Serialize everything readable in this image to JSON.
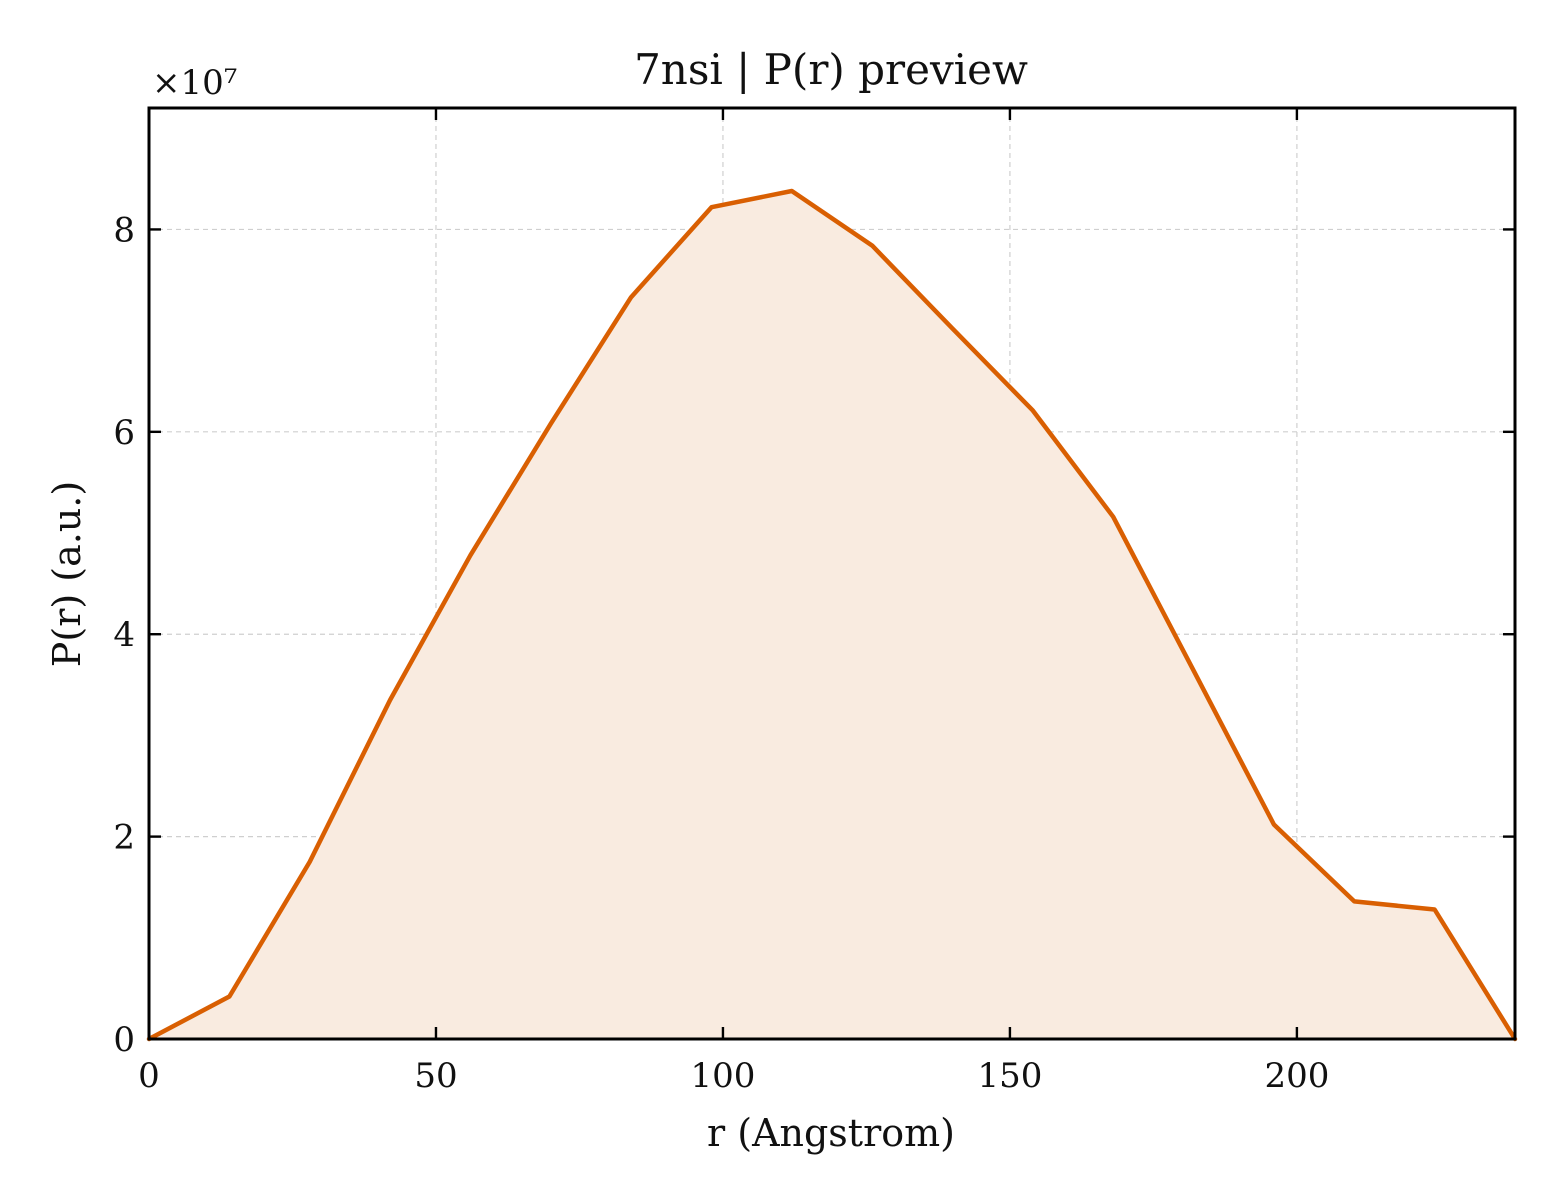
{
  "chart_data": {
    "type": "area",
    "title": "7nsi | P(r) preview",
    "xlabel": "r (Angstrom)",
    "ylabel": "P(r) (a.u.)",
    "y_multiplier_label": "×10⁷",
    "y_scale": 10000000,
    "xlim": [
      0,
      238
    ],
    "ylim": [
      0,
      9.2
    ],
    "x_ticks": [
      0,
      50,
      100,
      150,
      200
    ],
    "y_ticks": [
      0,
      2,
      4,
      6,
      8
    ],
    "grid": true,
    "colors": {
      "line": "#d95f02",
      "fill": "#f9ebe0"
    },
    "series": [
      {
        "x": [
          0,
          14,
          28,
          42,
          56,
          70,
          84,
          98,
          112,
          126,
          140,
          154,
          168,
          182,
          196,
          210,
          224,
          238
        ],
        "values": [
          0,
          0.42,
          1.75,
          3.35,
          4.78,
          6.08,
          7.33,
          8.22,
          8.38,
          7.84,
          7.02,
          6.21,
          5.16,
          3.64,
          2.12,
          1.36,
          1.28,
          0
        ]
      }
    ]
  }
}
